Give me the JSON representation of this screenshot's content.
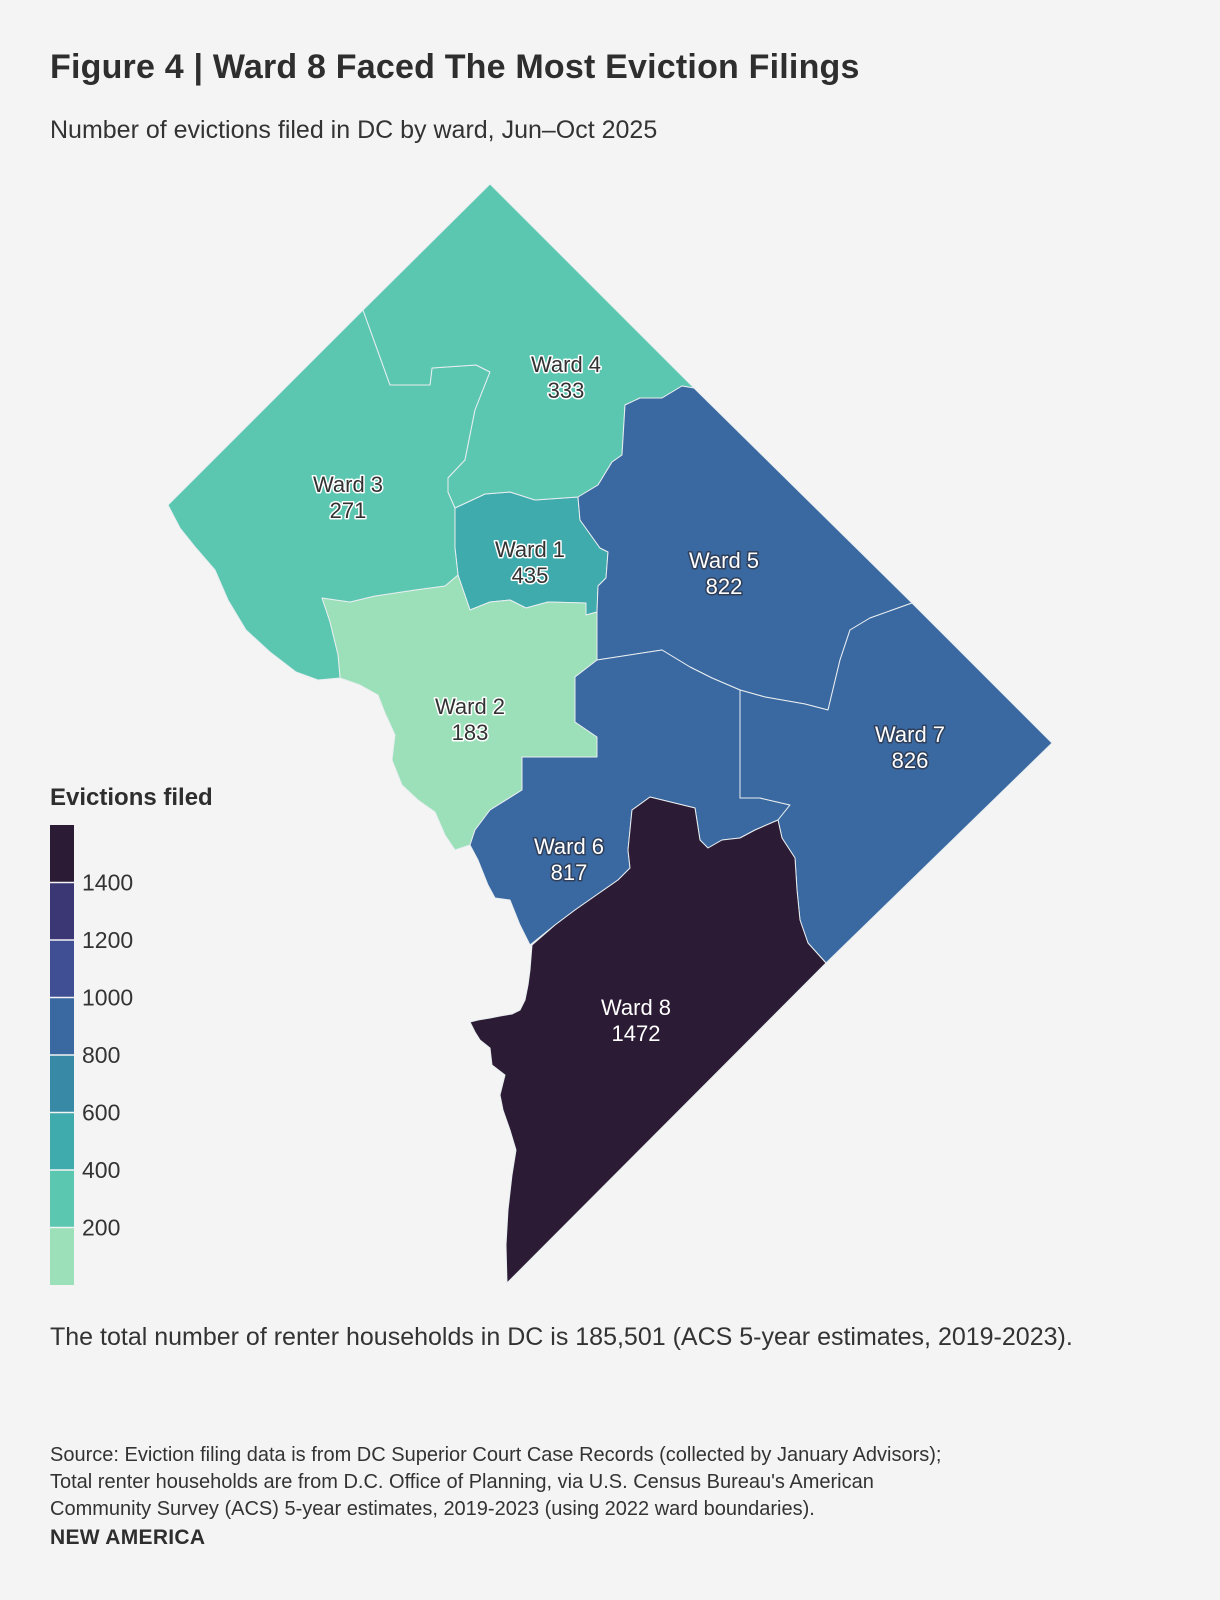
{
  "title": "Figure 4 | Ward 8 Faced The Most Eviction Filings",
  "subtitle": "Number of evictions filed in DC by ward, Jun–Oct 2025",
  "legend": {
    "title": "Evictions filed",
    "bins": [
      {
        "color": "#9be0b9",
        "label": ""
      },
      {
        "color": "#5bc7b1",
        "label": "200"
      },
      {
        "color": "#3fabad",
        "label": "400"
      },
      {
        "color": "#3789a5",
        "label": "600"
      },
      {
        "color": "#3a68a0",
        "label": "800"
      },
      {
        "color": "#404f93",
        "label": "1000"
      },
      {
        "color": "#3b3775",
        "label": "1200"
      },
      {
        "color": "#2c1b34",
        "label": "1400"
      }
    ]
  },
  "chart_data": {
    "type": "choropleth",
    "region": "Washington, DC",
    "variable": "Evictions filed",
    "wards": [
      {
        "name": "Ward 1",
        "value": 435,
        "color": "#3fabad"
      },
      {
        "name": "Ward 2",
        "value": 183,
        "color": "#9be0b9"
      },
      {
        "name": "Ward 3",
        "value": 271,
        "color": "#5bc7b1"
      },
      {
        "name": "Ward 4",
        "value": 333,
        "color": "#5bc7b1"
      },
      {
        "name": "Ward 5",
        "value": 822,
        "color": "#3a68a0"
      },
      {
        "name": "Ward 6",
        "value": 817,
        "color": "#3a68a0"
      },
      {
        "name": "Ward 7",
        "value": 826,
        "color": "#3a68a0"
      },
      {
        "name": "Ward 8",
        "value": 1472,
        "color": "#2c1b34"
      }
    ]
  },
  "note": "The total number of renter households in DC is 185,501 (ACS 5-year estimates, 2019-2023).",
  "source_lines": [
    "Source: Eviction filing data is from DC Superior Court Case Records (collected by January Advisors);",
    "Total renter households are from D.C. Office of Planning, via U.S. Census Bureau's American",
    "Community Survey (ACS) 5-year estimates, 2019-2023 (using 2022 ward boundaries)."
  ],
  "brand": "NEW AMERICA"
}
